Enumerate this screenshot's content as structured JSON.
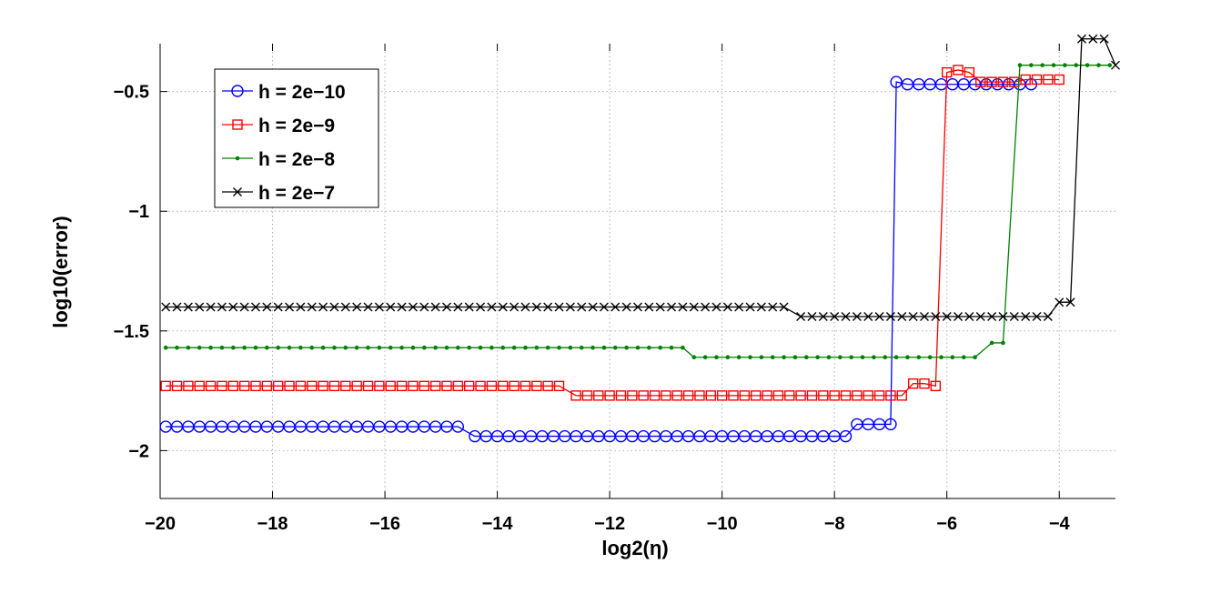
{
  "chart_data": {
    "type": "line",
    "xlabel": "log2(η)",
    "ylabel": "log10(error)",
    "xlim": [
      -20,
      -3
    ],
    "ylim": [
      -2.2,
      -0.3
    ],
    "xticks": [
      -20,
      -18,
      -16,
      -14,
      -12,
      -10,
      -8,
      -6,
      -4
    ],
    "xtick_labels": [
      "−20",
      "−18",
      "−16",
      "−14",
      "−12",
      "−10",
      "−8",
      "−6",
      "−4"
    ],
    "yticks": [
      -2,
      -1.5,
      -1,
      -0.5
    ],
    "ytick_labels": [
      "−2",
      "−1.5",
      "−1",
      "−0.5"
    ],
    "grid": true,
    "legend_position": "top-left",
    "series": [
      {
        "name": "h = 2e−10",
        "color": "#0000ff",
        "marker": "circle",
        "segments": [
          {
            "x_start": -19.9,
            "x_end": -14.6,
            "y": -1.9
          },
          {
            "x_start": -14.4,
            "x_end": -7.8,
            "y": -1.94
          },
          {
            "x_start": -7.6,
            "x_end": -7.1,
            "y": -1.89
          },
          {
            "x_start": -6.9,
            "x_end": -6.9,
            "y": -0.46
          },
          {
            "x_start": -6.7,
            "x_end": -4.5,
            "y": -0.47
          }
        ]
      },
      {
        "name": "h = 2e−9",
        "color": "#ff0000",
        "marker": "square",
        "segments": [
          {
            "x_start": -19.9,
            "x_end": -12.8,
            "y": -1.73
          },
          {
            "x_start": -12.6,
            "x_end": -6.8,
            "y": -1.77
          },
          {
            "x_start": -6.6,
            "x_end": -6.4,
            "y": -1.72
          },
          {
            "x_start": -6.2,
            "x_end": -6.2,
            "y": -1.73
          },
          {
            "x_start": -6.0,
            "x_end": -6.0,
            "y": -0.42
          },
          {
            "x_start": -5.8,
            "x_end": -5.8,
            "y": -0.41
          },
          {
            "x_start": -5.6,
            "x_end": -5.6,
            "y": -0.42
          },
          {
            "x_start": -5.4,
            "x_end": -4.8,
            "y": -0.46
          },
          {
            "x_start": -4.6,
            "x_end": -4.0,
            "y": -0.45
          }
        ]
      },
      {
        "name": "h = 2e−8",
        "color": "#008000",
        "marker": "dot",
        "segments": [
          {
            "x_start": -19.9,
            "x_end": -10.7,
            "y": -1.57
          },
          {
            "x_start": -10.5,
            "x_end": -5.4,
            "y": -1.61
          },
          {
            "x_start": -5.2,
            "x_end": -4.9,
            "y": -1.55
          },
          {
            "x_start": -4.7,
            "x_end": -3.1,
            "y": -0.39
          }
        ]
      },
      {
        "name": "h = 2e−7",
        "color": "#000000",
        "marker": "x",
        "segments": [
          {
            "x_start": -19.9,
            "x_end": -8.8,
            "y": -1.4
          },
          {
            "x_start": -8.6,
            "x_end": -4.2,
            "y": -1.44
          },
          {
            "x_start": -4.0,
            "x_end": -3.8,
            "y": -1.38
          },
          {
            "x_start": -3.6,
            "x_end": -3.3,
            "y": -0.28
          },
          {
            "x_start": -3.0,
            "x_end": -3.0,
            "y": -0.39
          }
        ]
      }
    ]
  }
}
